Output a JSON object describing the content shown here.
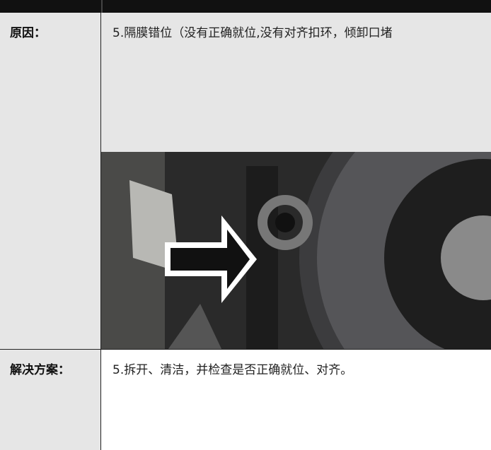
{
  "table": {
    "rows": [
      {
        "label": "原因：",
        "text": "5.隔膜错位（没有正确就位,没有对齐扣环，倾卸口堵"
      },
      {
        "label": "解决方案：",
        "text": "5.拆开、清洁，并检查是否正确就位、对齐。"
      }
    ]
  }
}
